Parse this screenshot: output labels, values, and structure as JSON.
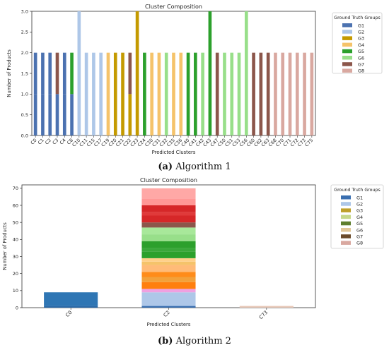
{
  "figure": {
    "caption_a": {
      "label": "(a)",
      "text": "Algorithm 1"
    },
    "caption_b": {
      "label": "(b)",
      "text": "Algorithm 2"
    }
  },
  "chart_data": [
    {
      "type": "bar",
      "stacked": true,
      "title": "Cluster Composition",
      "xlabel": "Predicted Clusters",
      "ylabel": "Number of Products",
      "ylim": [
        0,
        3
      ],
      "yticks": [
        "0.0",
        "0.5",
        "1.0",
        "1.5",
        "2.0",
        "2.5",
        "3.0"
      ],
      "grid": false,
      "legend": {
        "title": "Ground Truth Groups",
        "placement": "outside-right"
      },
      "series": [
        {
          "name": "G1",
          "color": "#4c72b0"
        },
        {
          "name": "G2",
          "color": "#aec7e8"
        },
        {
          "name": "G3",
          "color": "#c49a00"
        },
        {
          "name": "G4",
          "color": "#f5c36a"
        },
        {
          "name": "G5",
          "color": "#2ca02c"
        },
        {
          "name": "G6",
          "color": "#98df8a"
        },
        {
          "name": "G7",
          "color": "#8c564b"
        },
        {
          "name": "G8",
          "color": "#d9a8a0"
        }
      ],
      "categories": [
        "C0",
        "C1",
        "C2",
        "C3",
        "C4",
        "C8",
        "C10",
        "C11",
        "C15",
        "C17",
        "C19",
        "C20",
        "C21",
        "C22",
        "C23",
        "C24",
        "C30",
        "C31",
        "C32",
        "C35",
        "C36",
        "C40",
        "C41",
        "C42",
        "C43",
        "C47",
        "C50",
        "C51",
        "C53",
        "C56",
        "C60",
        "C62",
        "C63",
        "C68",
        "C70",
        "C71",
        "C72",
        "C73",
        "C75"
      ],
      "stacks": [
        [
          [
            "G1",
            1
          ],
          [
            "G1",
            1
          ]
        ],
        [
          [
            "G1",
            1
          ],
          [
            "G1",
            1
          ]
        ],
        [
          [
            "G1",
            1
          ],
          [
            "G1",
            1
          ]
        ],
        [
          [
            "G1",
            1
          ],
          [
            "G7",
            1
          ]
        ],
        [
          [
            "G1",
            1
          ],
          [
            "G1",
            1
          ]
        ],
        [
          [
            "G1",
            1
          ],
          [
            "G5",
            1
          ]
        ],
        [
          [
            "G2",
            3
          ]
        ],
        [
          [
            "G2",
            2
          ]
        ],
        [
          [
            "G2",
            2
          ]
        ],
        [
          [
            "G2",
            2
          ]
        ],
        [
          [
            "G4",
            2
          ]
        ],
        [
          [
            "G3",
            2
          ]
        ],
        [
          [
            "G3",
            2
          ]
        ],
        [
          [
            "G3",
            1
          ],
          [
            "G7",
            1
          ]
        ],
        [
          [
            "G3",
            3
          ]
        ],
        [
          [
            "G5",
            2
          ]
        ],
        [
          [
            "G4",
            2
          ]
        ],
        [
          [
            "G4",
            2
          ]
        ],
        [
          [
            "G6",
            2
          ]
        ],
        [
          [
            "G4",
            2
          ]
        ],
        [
          [
            "G4",
            2
          ]
        ],
        [
          [
            "G5",
            2
          ]
        ],
        [
          [
            "G5",
            2
          ]
        ],
        [
          [
            "G6",
            2
          ]
        ],
        [
          [
            "G5",
            3
          ]
        ],
        [
          [
            "G7",
            2
          ]
        ],
        [
          [
            "G6",
            2
          ]
        ],
        [
          [
            "G6",
            2
          ]
        ],
        [
          [
            "G6",
            2
          ]
        ],
        [
          [
            "G6",
            3
          ]
        ],
        [
          [
            "G7",
            2
          ]
        ],
        [
          [
            "G7",
            2
          ]
        ],
        [
          [
            "G7",
            2
          ]
        ],
        [
          [
            "G8",
            2
          ]
        ],
        [
          [
            "G8",
            2
          ]
        ],
        [
          [
            "G8",
            2
          ]
        ],
        [
          [
            "G8",
            2
          ]
        ],
        [
          [
            "G8",
            2
          ]
        ],
        [
          [
            "G8",
            2
          ]
        ]
      ]
    },
    {
      "type": "bar",
      "stacked": true,
      "title": "Cluster Composition",
      "xlabel": "Predicted Clusters",
      "ylabel": "Number of Products",
      "ylim": [
        0,
        72
      ],
      "yticks": [
        "0",
        "10",
        "20",
        "30",
        "40",
        "50",
        "60",
        "70"
      ],
      "grid": false,
      "legend": {
        "title": "Ground Truth Groups",
        "placement": "outside-right"
      },
      "series": [
        {
          "name": "G1",
          "color": "#3a6fb0"
        },
        {
          "name": "G2",
          "color": "#aec7e8"
        },
        {
          "name": "G3",
          "color": "#bfa02a"
        },
        {
          "name": "G4",
          "color": "#c7d88a"
        },
        {
          "name": "G5",
          "color": "#5f7f2e"
        },
        {
          "name": "G6",
          "color": "#e2c89a"
        },
        {
          "name": "G7",
          "color": "#6b4b2a"
        },
        {
          "name": "G8",
          "color": "#d9a8a0"
        }
      ],
      "categories": [
        "C0",
        "C2",
        "C73"
      ],
      "stacks": [
        [
          [
            "#2b6aa8",
            1
          ],
          [
            "#2f76b4",
            8
          ]
        ],
        [
          [
            "#3a6fb0",
            1
          ],
          [
            "#aec7e8",
            8
          ],
          [
            "#f0a0e0",
            2
          ],
          [
            "#ff7f0e",
            4
          ],
          [
            "#f3a13a",
            3
          ],
          [
            "#ff8c1a",
            3
          ],
          [
            "#ffbb78",
            4
          ],
          [
            "#f5c36a",
            2
          ],
          [
            "#ffd08a",
            2
          ],
          [
            "#2ca02c",
            4
          ],
          [
            "#3aa83a",
            2
          ],
          [
            "#2ca02c",
            4
          ],
          [
            "#98df8a",
            4
          ],
          [
            "#a8e89a",
            4
          ],
          [
            "#8c564b",
            3
          ],
          [
            "#d62728",
            4
          ],
          [
            "#e03a3a",
            2
          ],
          [
            "#d62728",
            4
          ],
          [
            "#ff9896",
            4
          ],
          [
            "#ffa8a6",
            6
          ]
        ],
        [
          [
            "#e8c8b8",
            1
          ]
        ]
      ]
    }
  ]
}
